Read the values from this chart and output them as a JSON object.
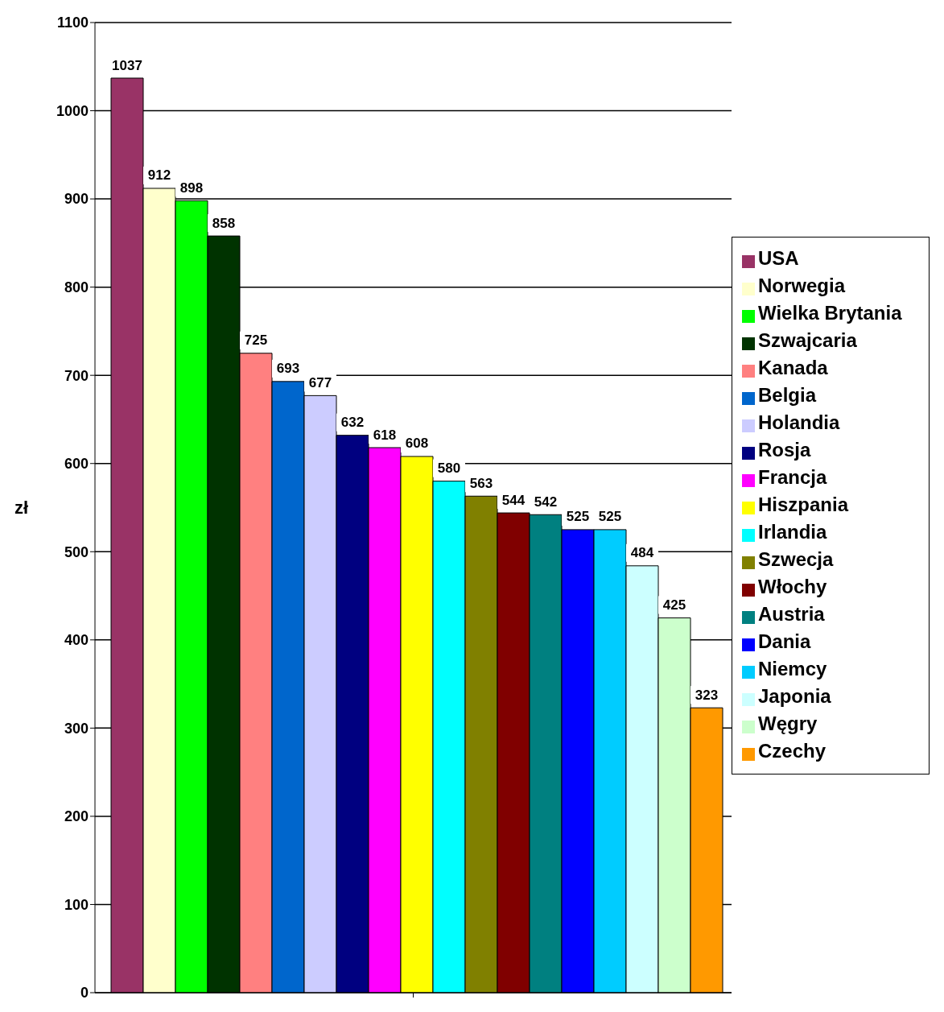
{
  "chart_data": {
    "type": "bar",
    "ylabel": "zł",
    "categories": [
      null
    ],
    "series": [
      {
        "name": "USA",
        "color": "#993366",
        "values": [
          1037
        ]
      },
      {
        "name": "Norwegia",
        "color": "#ffffcc",
        "values": [
          912
        ]
      },
      {
        "name": "Wielka Brytania",
        "color": "#00ff00",
        "values": [
          898
        ]
      },
      {
        "name": "Szwajcaria",
        "color": "#003300",
        "values": [
          858
        ]
      },
      {
        "name": "Kanada",
        "color": "#ff8080",
        "values": [
          725
        ]
      },
      {
        "name": "Belgia",
        "color": "#0066cc",
        "values": [
          693
        ]
      },
      {
        "name": "Holandia",
        "color": "#ccccff",
        "values": [
          677
        ]
      },
      {
        "name": "Rosja",
        "color": "#000080",
        "values": [
          632
        ]
      },
      {
        "name": "Francja",
        "color": "#ff00ff",
        "values": [
          618
        ]
      },
      {
        "name": "Hiszpania",
        "color": "#ffff00",
        "values": [
          608
        ]
      },
      {
        "name": "Irlandia",
        "color": "#00ffff",
        "values": [
          580
        ]
      },
      {
        "name": "Szwecja",
        "color": "#808000",
        "values": [
          563
        ]
      },
      {
        "name": "Włochy",
        "color": "#800000",
        "values": [
          544
        ]
      },
      {
        "name": "Austria",
        "color": "#008080",
        "values": [
          542
        ]
      },
      {
        "name": "Dania",
        "color": "#0000ff",
        "values": [
          525
        ]
      },
      {
        "name": "Niemcy",
        "color": "#00ccff",
        "values": [
          525
        ]
      },
      {
        "name": "Japonia",
        "color": "#ccffff",
        "values": [
          484
        ]
      },
      {
        "name": "Węgry",
        "color": "#ccffcc",
        "values": [
          425
        ]
      },
      {
        "name": "Czechy",
        "color": "#ff9900",
        "values": [
          323
        ]
      }
    ],
    "ylim": [
      0,
      1100
    ],
    "yticks": [
      0,
      100,
      200,
      300,
      400,
      500,
      600,
      700,
      800,
      900,
      1000,
      1100
    ],
    "grid": "y",
    "legend": "right",
    "data_labels": true
  }
}
